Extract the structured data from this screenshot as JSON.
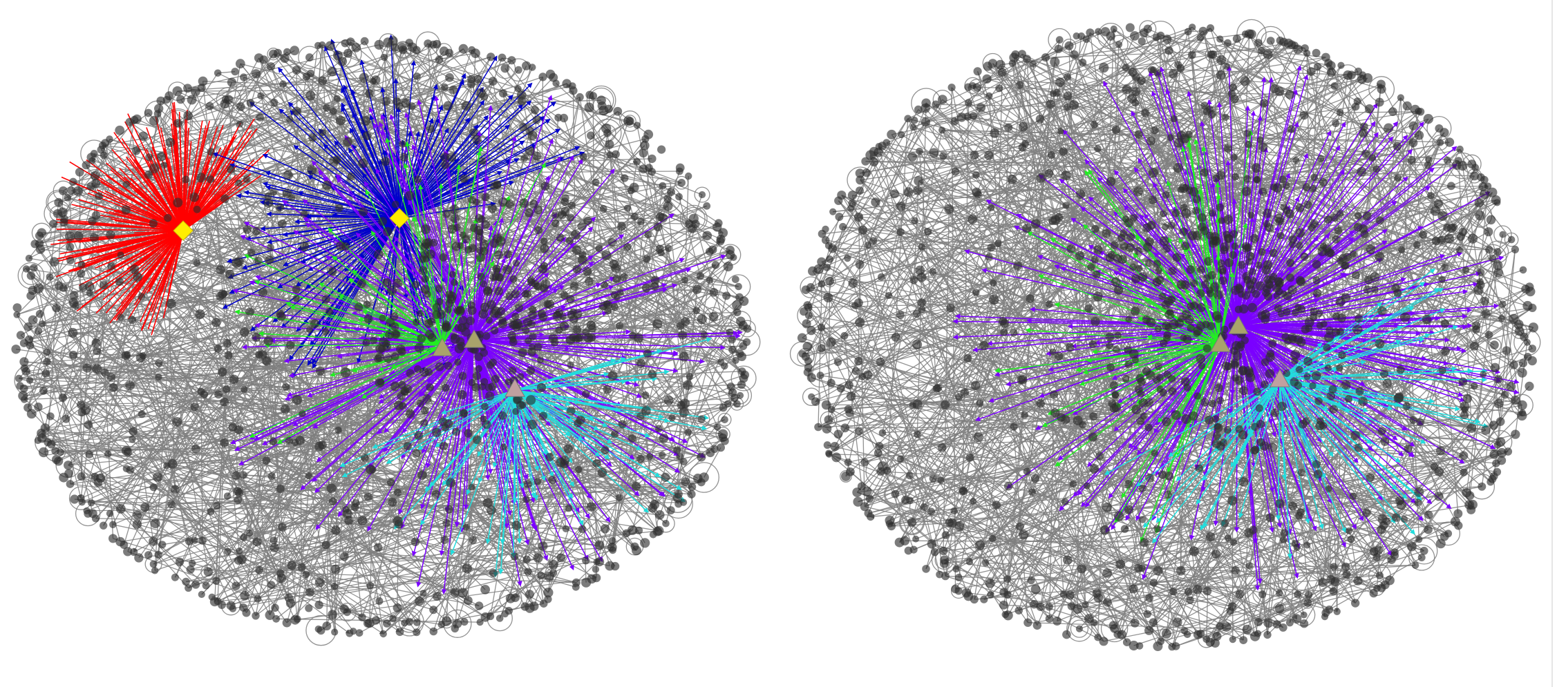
{
  "figure": {
    "panels": [
      {
        "id": "left",
        "description_free": true,
        "highlighted_hubs": [
          {
            "name": "red-hub",
            "color": "#ff0000",
            "marker": "diamond",
            "marker_color": "#ffee00"
          },
          {
            "name": "blue-hub",
            "color": "#0000cc",
            "marker": "diamond",
            "marker_color": "#ffee00"
          },
          {
            "name": "violet-hub",
            "color": "#7a00ff",
            "marker": "triangle",
            "marker_color": "#a9a36b"
          },
          {
            "name": "green-hub",
            "color": "#22ee22",
            "marker": "triangle",
            "marker_color": "#a9a36b"
          },
          {
            "name": "cyan-hub",
            "color": "#22dddd",
            "marker": "triangle",
            "marker_color": "#c0a0a0"
          }
        ]
      },
      {
        "id": "right",
        "highlighted_hubs": [
          {
            "name": "violet-hub",
            "color": "#7a00ff",
            "marker": "triangle",
            "marker_color": "#a9a36b"
          },
          {
            "name": "green-hub",
            "color": "#22ee22",
            "marker": "triangle",
            "marker_color": "#a9a36b"
          },
          {
            "name": "cyan-hub",
            "color": "#22dddd",
            "marker": "triangle",
            "marker_color": "#c0a0a0"
          }
        ]
      }
    ],
    "colors": {
      "background_edge": "#7f7f7f",
      "node": "#2b2b2b",
      "red": "#ff0000",
      "blue": "#0000cc",
      "violet": "#7a00ff",
      "green": "#22ee22",
      "cyan": "#22dddd",
      "yellow_marker": "#ffee00"
    }
  }
}
